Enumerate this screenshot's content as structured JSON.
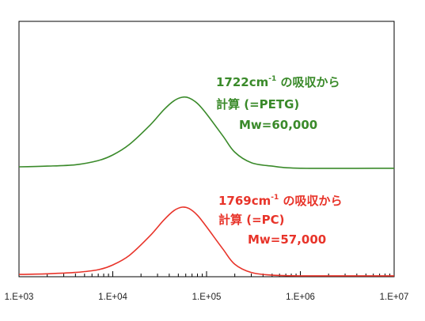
{
  "chart_data": {
    "type": "line",
    "title": "",
    "xlabel": "",
    "ylabel": "",
    "x_scale": "log",
    "xlim": [
      1000,
      10000000
    ],
    "x_ticks": [
      1000,
      10000,
      100000,
      1000000,
      10000000
    ],
    "x_tick_labels": [
      "1.E+03",
      "1.E+04",
      "1.E+05",
      "1.E+06",
      "1.E+07"
    ],
    "y_ticks_shown": false,
    "grid": false,
    "legend": "none",
    "series": [
      {
        "color": "#3a8a2a",
        "points": [
          [
            1000,
            0.0
          ],
          [
            2000,
            0.01
          ],
          [
            4000,
            0.03
          ],
          [
            7000,
            0.09
          ],
          [
            10000,
            0.17
          ],
          [
            15000,
            0.32
          ],
          [
            25000,
            0.6
          ],
          [
            35000,
            0.82
          ],
          [
            45000,
            0.95
          ],
          [
            55000,
            1.0
          ],
          [
            65000,
            0.99
          ],
          [
            80000,
            0.91
          ],
          [
            100000,
            0.76
          ],
          [
            150000,
            0.44
          ],
          [
            200000,
            0.21
          ],
          [
            300000,
            0.06
          ],
          [
            500000,
            0.01
          ],
          [
            1000000,
            -0.02
          ],
          [
            10000000,
            -0.02
          ]
        ],
        "annotation": [
          "1722cm",
          "-1",
          " の吸収から",
          "計算 (=PETG)",
          "Mw=60,000"
        ]
      },
      {
        "color": "#e8342a",
        "points": [
          [
            1000,
            0.01
          ],
          [
            2000,
            0.02
          ],
          [
            4000,
            0.04
          ],
          [
            7000,
            0.08
          ],
          [
            10000,
            0.15
          ],
          [
            15000,
            0.29
          ],
          [
            25000,
            0.58
          ],
          [
            35000,
            0.81
          ],
          [
            45000,
            0.95
          ],
          [
            55000,
            1.0
          ],
          [
            65000,
            0.98
          ],
          [
            80000,
            0.88
          ],
          [
            100000,
            0.71
          ],
          [
            150000,
            0.38
          ],
          [
            200000,
            0.16
          ],
          [
            300000,
            0.04
          ],
          [
            500000,
            0.0
          ],
          [
            1000000,
            -0.01
          ],
          [
            10000000,
            -0.01
          ]
        ],
        "annotation": [
          "1769cm",
          "-1",
          " の吸収から",
          "計算 (=PC)",
          "Mw=57,000"
        ]
      }
    ]
  }
}
